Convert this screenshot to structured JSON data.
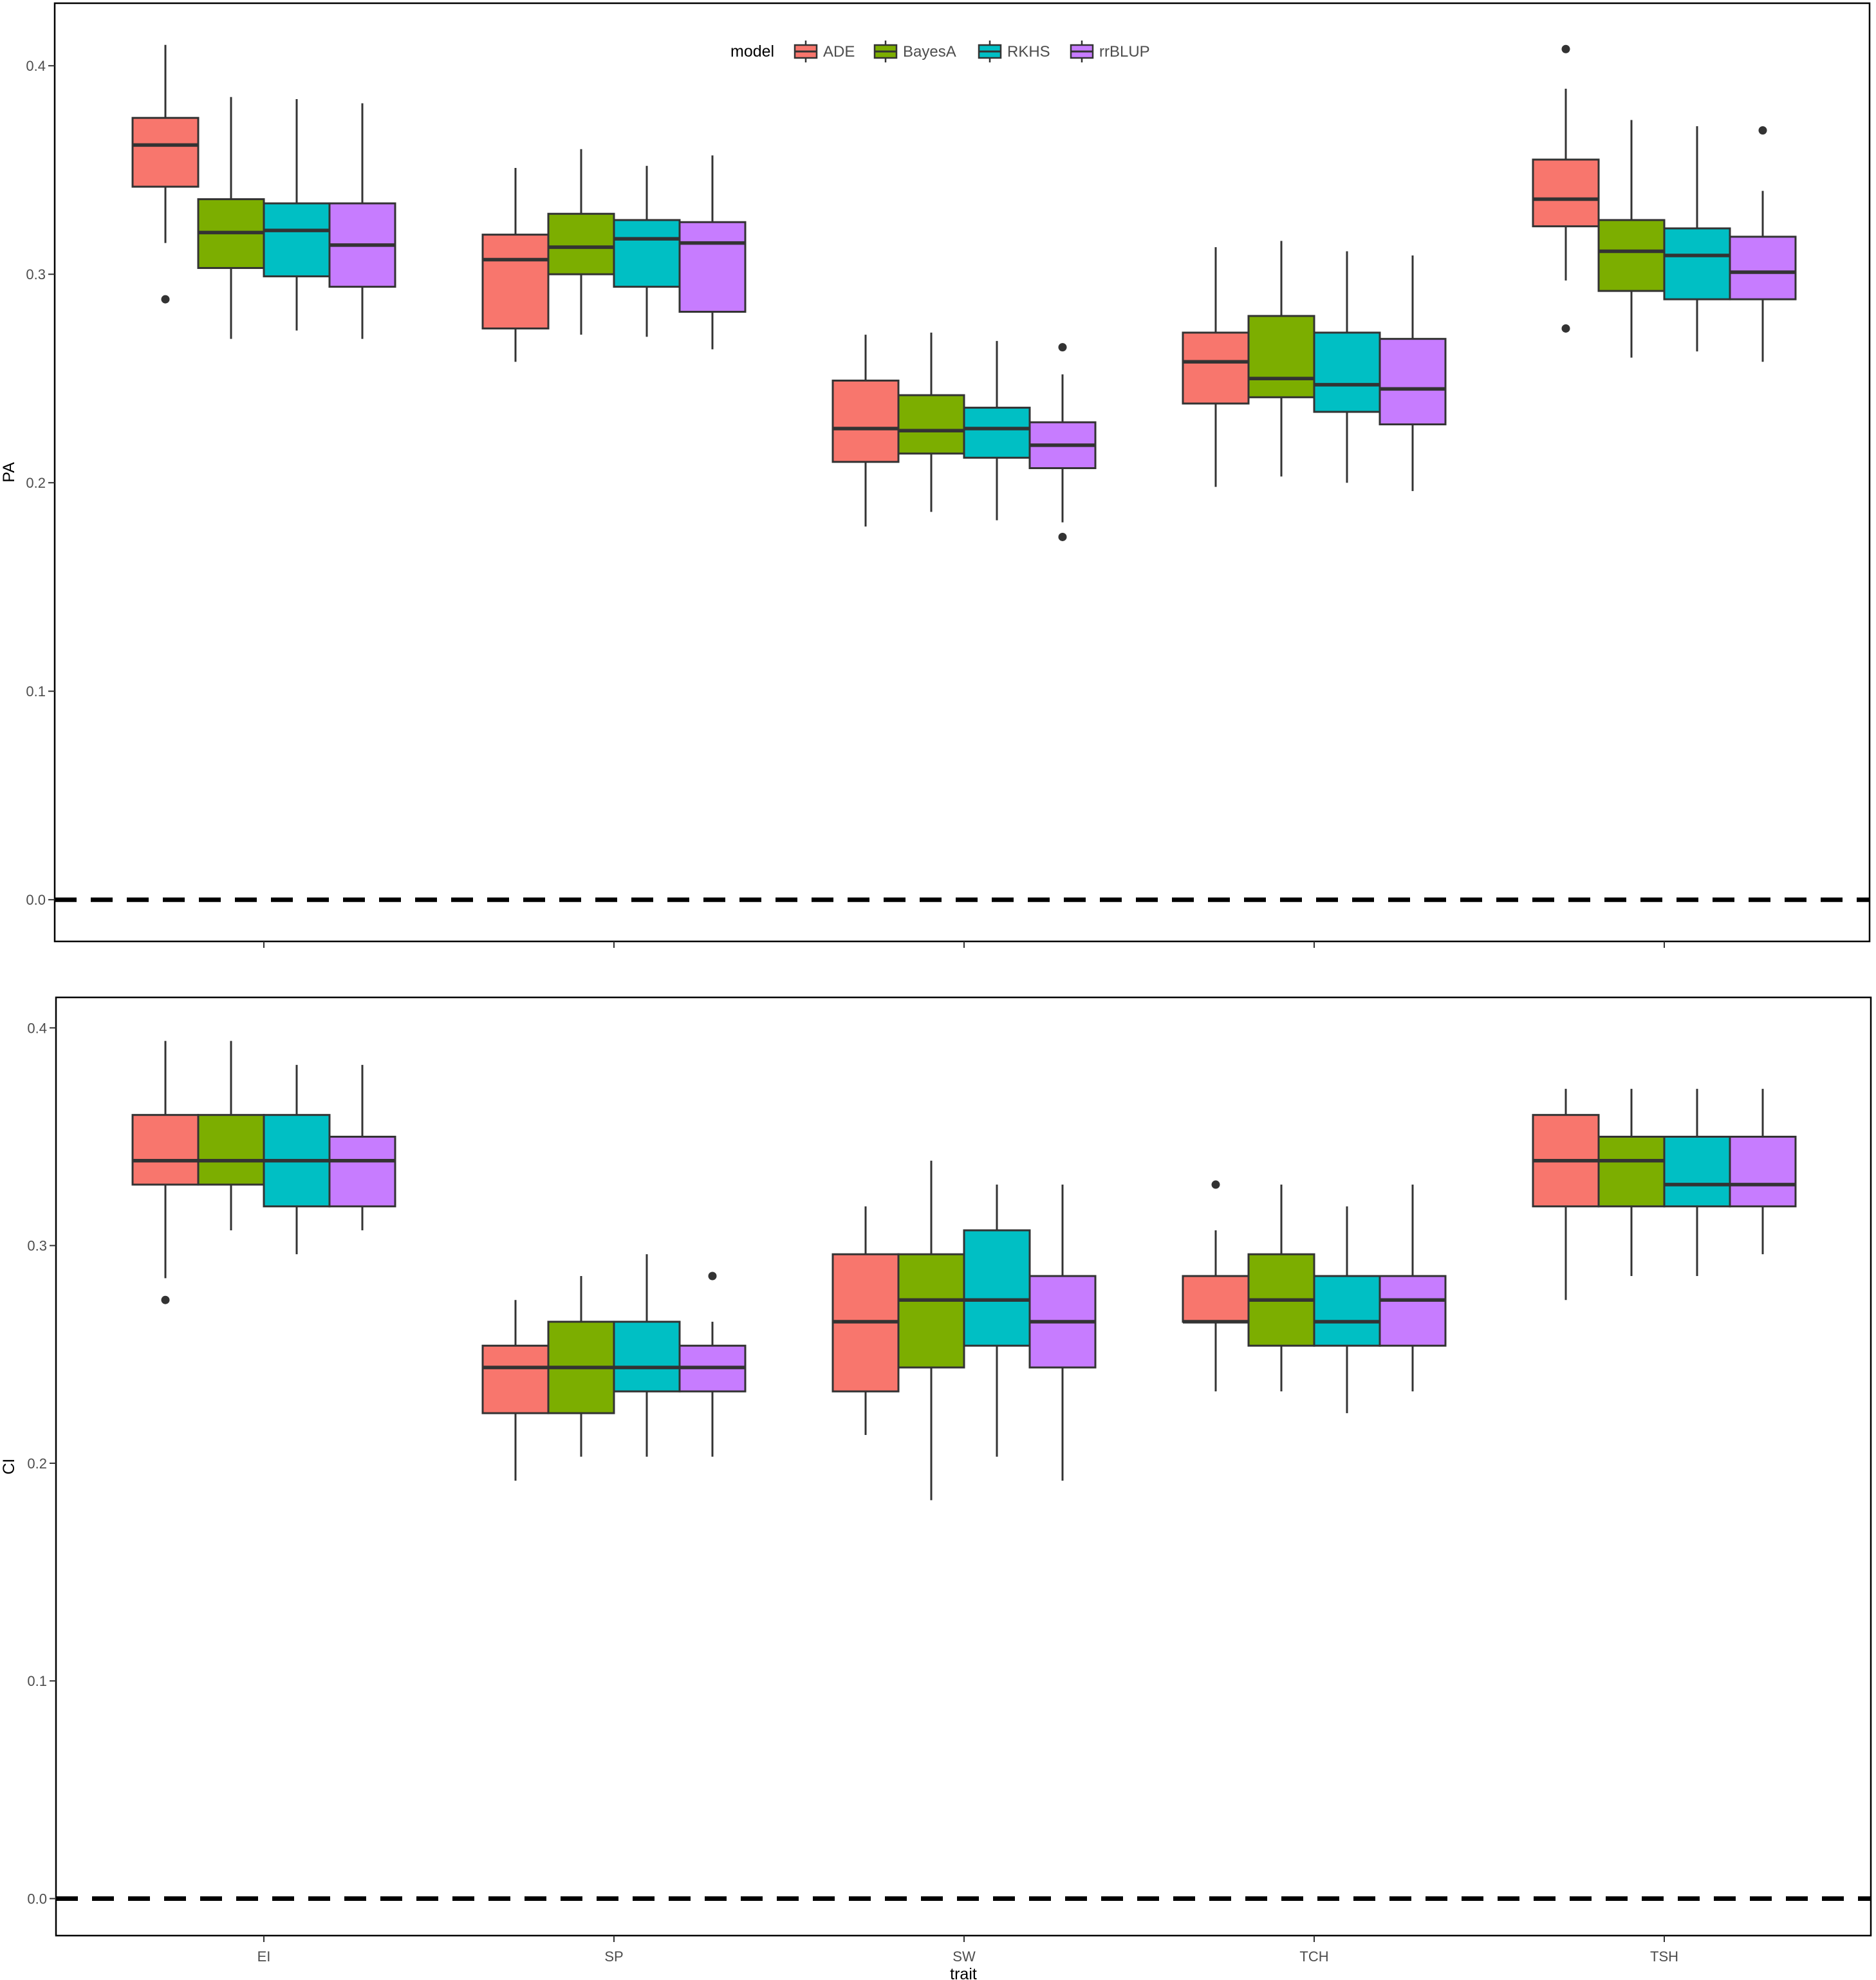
{
  "legend": {
    "title": "model",
    "items": [
      {
        "label": "ADE",
        "color": "#F8766D"
      },
      {
        "label": "BayesA",
        "color": "#7CAE00"
      },
      {
        "label": "RKHS",
        "color": "#00BFC4"
      },
      {
        "label": "rrBLUP",
        "color": "#C77CFF"
      }
    ],
    "placement": "top-center"
  },
  "chart_data": [
    {
      "type": "boxplot",
      "ylabel": "PA",
      "xlabel": "",
      "ylim": [
        -0.02,
        0.43
      ],
      "yticks": [
        "0.0",
        "0.1",
        "0.2",
        "0.3",
        "0.4"
      ],
      "yticks_values": [
        0.0,
        0.1,
        0.2,
        0.3,
        0.4
      ],
      "reference_line": {
        "y": 0.0,
        "style": "dashed"
      },
      "categories": [
        "EI",
        "SP",
        "SW",
        "TCH",
        "TSH"
      ],
      "series": [
        {
          "name": "ADE",
          "boxes": [
            {
              "min": 0.315,
              "q1": 0.342,
              "median": 0.362,
              "q3": 0.375,
              "max": 0.41,
              "outliers": [
                0.288
              ]
            },
            {
              "min": 0.258,
              "q1": 0.274,
              "median": 0.307,
              "q3": 0.319,
              "max": 0.351,
              "outliers": []
            },
            {
              "min": 0.179,
              "q1": 0.21,
              "median": 0.226,
              "q3": 0.249,
              "max": 0.271,
              "outliers": []
            },
            {
              "min": 0.198,
              "q1": 0.238,
              "median": 0.258,
              "q3": 0.272,
              "max": 0.313,
              "outliers": []
            },
            {
              "min": 0.297,
              "q1": 0.323,
              "median": 0.336,
              "q3": 0.355,
              "max": 0.389,
              "outliers": [
                0.408,
                0.274
              ]
            }
          ]
        },
        {
          "name": "BayesA",
          "boxes": [
            {
              "min": 0.269,
              "q1": 0.303,
              "median": 0.32,
              "q3": 0.336,
              "max": 0.385,
              "outliers": []
            },
            {
              "min": 0.271,
              "q1": 0.3,
              "median": 0.313,
              "q3": 0.329,
              "max": 0.36,
              "outliers": []
            },
            {
              "min": 0.186,
              "q1": 0.214,
              "median": 0.225,
              "q3": 0.242,
              "max": 0.272,
              "outliers": []
            },
            {
              "min": 0.203,
              "q1": 0.241,
              "median": 0.25,
              "q3": 0.28,
              "max": 0.316,
              "outliers": []
            },
            {
              "min": 0.26,
              "q1": 0.292,
              "median": 0.311,
              "q3": 0.326,
              "max": 0.374,
              "outliers": []
            }
          ]
        },
        {
          "name": "RKHS",
          "boxes": [
            {
              "min": 0.273,
              "q1": 0.299,
              "median": 0.321,
              "q3": 0.334,
              "max": 0.384,
              "outliers": []
            },
            {
              "min": 0.27,
              "q1": 0.294,
              "median": 0.317,
              "q3": 0.326,
              "max": 0.352,
              "outliers": []
            },
            {
              "min": 0.182,
              "q1": 0.212,
              "median": 0.226,
              "q3": 0.236,
              "max": 0.268,
              "outliers": []
            },
            {
              "min": 0.2,
              "q1": 0.234,
              "median": 0.247,
              "q3": 0.272,
              "max": 0.311,
              "outliers": []
            },
            {
              "min": 0.263,
              "q1": 0.288,
              "median": 0.309,
              "q3": 0.322,
              "max": 0.371,
              "outliers": []
            }
          ]
        },
        {
          "name": "rrBLUP",
          "boxes": [
            {
              "min": 0.269,
              "q1": 0.294,
              "median": 0.314,
              "q3": 0.334,
              "max": 0.382,
              "outliers": []
            },
            {
              "min": 0.264,
              "q1": 0.282,
              "median": 0.315,
              "q3": 0.325,
              "max": 0.357,
              "outliers": []
            },
            {
              "min": 0.181,
              "q1": 0.207,
              "median": 0.218,
              "q3": 0.229,
              "max": 0.252,
              "outliers": [
                0.265,
                0.174
              ]
            },
            {
              "min": 0.196,
              "q1": 0.228,
              "median": 0.245,
              "q3": 0.269,
              "max": 0.309,
              "outliers": []
            },
            {
              "min": 0.258,
              "q1": 0.288,
              "median": 0.301,
              "q3": 0.318,
              "max": 0.34,
              "outliers": [
                0.369
              ]
            }
          ]
        }
      ]
    },
    {
      "type": "boxplot",
      "ylabel": "CI",
      "xlabel": "trait",
      "ylim": [
        -0.017,
        0.414
      ],
      "yticks": [
        "0.0",
        "0.1",
        "0.2",
        "0.3",
        "0.4"
      ],
      "yticks_values": [
        0.0,
        0.1,
        0.2,
        0.3,
        0.4
      ],
      "reference_line": {
        "y": 0.0,
        "style": "dashed"
      },
      "categories": [
        "EI",
        "SP",
        "SW",
        "TCH",
        "TSH"
      ],
      "series": [
        {
          "name": "ADE",
          "boxes": [
            {
              "min": 0.285,
              "q1": 0.328,
              "median": 0.339,
              "q3": 0.36,
              "max": 0.394,
              "outliers": [
                0.275
              ]
            },
            {
              "min": 0.192,
              "q1": 0.223,
              "median": 0.244,
              "q3": 0.254,
              "max": 0.275,
              "outliers": []
            },
            {
              "min": 0.213,
              "q1": 0.233,
              "median": 0.265,
              "q3": 0.296,
              "max": 0.318,
              "outliers": []
            },
            {
              "min": 0.233,
              "q1": 0.265,
              "median": 0.265,
              "q3": 0.286,
              "max": 0.307,
              "outliers": [
                0.328
              ]
            },
            {
              "min": 0.275,
              "q1": 0.318,
              "median": 0.339,
              "q3": 0.36,
              "max": 0.372,
              "outliers": []
            }
          ]
        },
        {
          "name": "BayesA",
          "boxes": [
            {
              "min": 0.307,
              "q1": 0.328,
              "median": 0.339,
              "q3": 0.36,
              "max": 0.394,
              "outliers": []
            },
            {
              "min": 0.203,
              "q1": 0.223,
              "median": 0.244,
              "q3": 0.265,
              "max": 0.286,
              "outliers": []
            },
            {
              "min": 0.183,
              "q1": 0.244,
              "median": 0.275,
              "q3": 0.296,
              "max": 0.339,
              "outliers": []
            },
            {
              "min": 0.233,
              "q1": 0.254,
              "median": 0.275,
              "q3": 0.296,
              "max": 0.328,
              "outliers": []
            },
            {
              "min": 0.286,
              "q1": 0.318,
              "median": 0.339,
              "q3": 0.35,
              "max": 0.372,
              "outliers": []
            }
          ]
        },
        {
          "name": "RKHS",
          "boxes": [
            {
              "min": 0.296,
              "q1": 0.318,
              "median": 0.339,
              "q3": 0.36,
              "max": 0.383,
              "outliers": []
            },
            {
              "min": 0.203,
              "q1": 0.233,
              "median": 0.244,
              "q3": 0.265,
              "max": 0.296,
              "outliers": []
            },
            {
              "min": 0.203,
              "q1": 0.254,
              "median": 0.275,
              "q3": 0.307,
              "max": 0.328,
              "outliers": []
            },
            {
              "min": 0.223,
              "q1": 0.254,
              "median": 0.265,
              "q3": 0.286,
              "max": 0.318,
              "outliers": []
            },
            {
              "min": 0.286,
              "q1": 0.318,
              "median": 0.328,
              "q3": 0.35,
              "max": 0.372,
              "outliers": []
            }
          ]
        },
        {
          "name": "rrBLUP",
          "boxes": [
            {
              "min": 0.307,
              "q1": 0.318,
              "median": 0.339,
              "q3": 0.35,
              "max": 0.383,
              "outliers": []
            },
            {
              "min": 0.203,
              "q1": 0.233,
              "median": 0.244,
              "q3": 0.254,
              "max": 0.265,
              "outliers": [
                0.286
              ]
            },
            {
              "min": 0.192,
              "q1": 0.244,
              "median": 0.265,
              "q3": 0.286,
              "max": 0.328,
              "outliers": []
            },
            {
              "min": 0.233,
              "q1": 0.254,
              "median": 0.275,
              "q3": 0.286,
              "max": 0.328,
              "outliers": []
            },
            {
              "min": 0.296,
              "q1": 0.318,
              "median": 0.328,
              "q3": 0.35,
              "max": 0.372,
              "outliers": []
            }
          ]
        }
      ]
    }
  ]
}
